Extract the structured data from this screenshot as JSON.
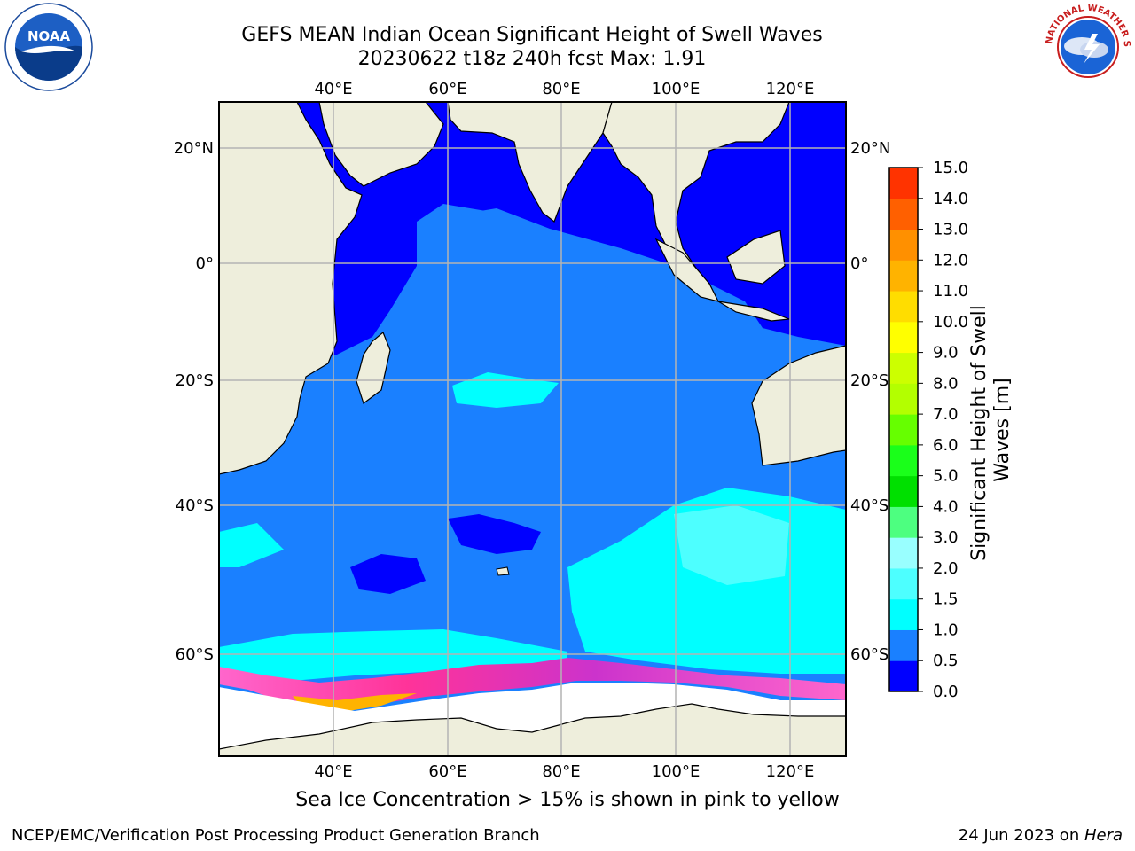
{
  "header": {
    "title_line1": "GEFS MEAN Indian Ocean Significant Height of Swell Waves",
    "title_line2": "20230622 t18z 240h fcst   Max: 1.91"
  },
  "logos": {
    "left": {
      "icon": "noaa-logo",
      "text": "NOAA"
    },
    "right": {
      "icon": "nws-logo",
      "text": "NATIONAL WEATHER SERVICE"
    }
  },
  "map": {
    "lon_ticks": [
      "40°E",
      "60°E",
      "80°E",
      "100°E",
      "120°E"
    ],
    "lat_ticks": [
      "20°N",
      "0°",
      "20°S",
      "40°S",
      "60°S"
    ],
    "colors": {
      "land": "#eeeedc",
      "ice": "#ffffff",
      "grid": "#b4b4b4"
    }
  },
  "colorbar": {
    "label": "Significant Height of Swell Waves [m]",
    "ticks": [
      "0.0",
      "0.5",
      "1.0",
      "1.5",
      "2.0",
      "3.0",
      "4.0",
      "5.0",
      "6.0",
      "7.0",
      "8.0",
      "9.0",
      "10.0",
      "11.0",
      "12.0",
      "13.0",
      "14.0",
      "15.0"
    ],
    "colors": [
      "#0000ff",
      "#1a80ff",
      "#00ffff",
      "#4dffff",
      "#99ffff",
      "#4dff80",
      "#00e000",
      "#1aff1a",
      "#66ff00",
      "#b3ff00",
      "#ccff00",
      "#ffff00",
      "#ffdd00",
      "#ffb300",
      "#ff9000",
      "#ff6000",
      "#ff3300",
      "#ff0000"
    ]
  },
  "footer": {
    "note": "Sea Ice Concentration > 15% is shown in pink to yellow",
    "credit": "NCEP/EMC/Verification Post Processing Product Generation Branch",
    "date_prefix": "24 Jun 2023 on ",
    "host": "Hera"
  }
}
